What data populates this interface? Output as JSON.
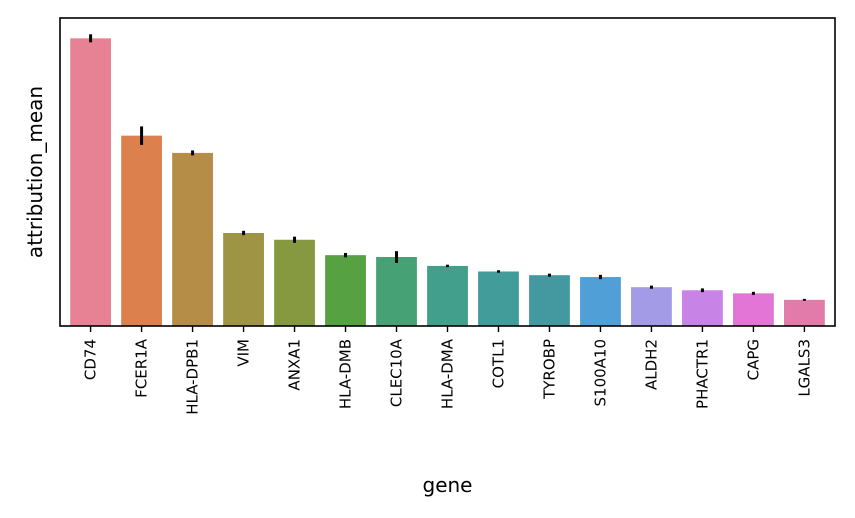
{
  "chart_data": {
    "type": "bar",
    "xlabel": "gene",
    "ylabel": "attribution_mean",
    "y_ticks_shown": false,
    "grid": false,
    "legend": "none",
    "ylim": [
      0,
      1.0
    ],
    "categories": [
      "CD74",
      "FCER1A",
      "HLA-DPB1",
      "VIM",
      "ANXA1",
      "HLA-DMB",
      "CLEC10A",
      "HLA-DMA",
      "COTL1",
      "TYROBP",
      "S100A10",
      "ALDH2",
      "PHACTR1",
      "CAPG",
      "LGALS3"
    ],
    "values": [
      0.934,
      0.618,
      0.562,
      0.302,
      0.28,
      0.23,
      0.224,
      0.195,
      0.177,
      0.165,
      0.159,
      0.126,
      0.116,
      0.106,
      0.085
    ],
    "errors": [
      0.013,
      0.03,
      0.008,
      0.007,
      0.01,
      0.007,
      0.019,
      0.004,
      0.004,
      0.005,
      0.007,
      0.005,
      0.006,
      0.005,
      0.003
    ],
    "colors": [
      "#e78294",
      "#dc814e",
      "#b68d47",
      "#9e9444",
      "#869940",
      "#56a142",
      "#46a274",
      "#419f8b",
      "#419c9a",
      "#43999f",
      "#519fd7",
      "#a39be6",
      "#c783e5",
      "#e275d5",
      "#e27baa"
    ]
  }
}
